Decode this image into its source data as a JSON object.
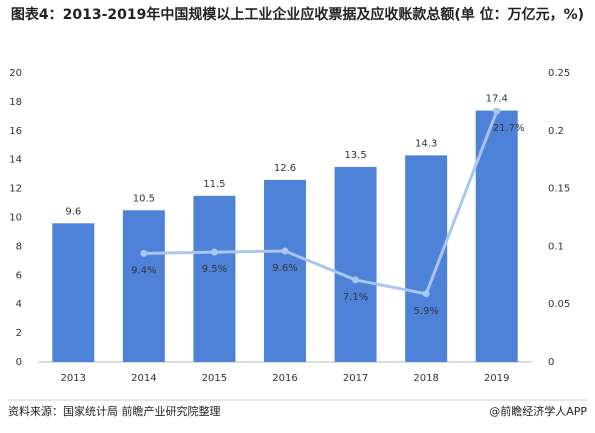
{
  "chart_data": {
    "type": "bar_line",
    "title": "图表4：2013-2019年中国规模以上工业企业应收票据及应收账款总额(单 位：万亿元，%)",
    "categories": [
      "2013",
      "2014",
      "2015",
      "2016",
      "2017",
      "2018",
      "2019"
    ],
    "series": [
      {
        "type": "bar",
        "color": "#4d82d8",
        "values": [
          9.6,
          10.5,
          11.5,
          12.6,
          13.5,
          14.3,
          17.4
        ]
      },
      {
        "type": "line",
        "axis": "y2",
        "color": "#a8c7ee",
        "values": [
          null,
          0.094,
          0.095,
          0.096,
          0.071,
          0.059,
          0.217
        ],
        "value_labels": [
          null,
          "9.4%",
          "9.5%",
          "9.6%",
          "7.1%",
          "5.9%",
          "21.7%"
        ]
      }
    ],
    "ylim": [
      0,
      20
    ],
    "yticks": [
      0,
      2,
      4,
      6,
      8,
      10,
      12,
      14,
      16,
      18,
      20
    ],
    "y2lim": [
      0,
      0.25
    ],
    "y2ticks": [
      0,
      0.05,
      0.1,
      0.15,
      0.2,
      0.25
    ],
    "source": "资料来源：国家统计局 前瞻产业研究院整理",
    "credit": "@前瞻经济学人APP"
  }
}
